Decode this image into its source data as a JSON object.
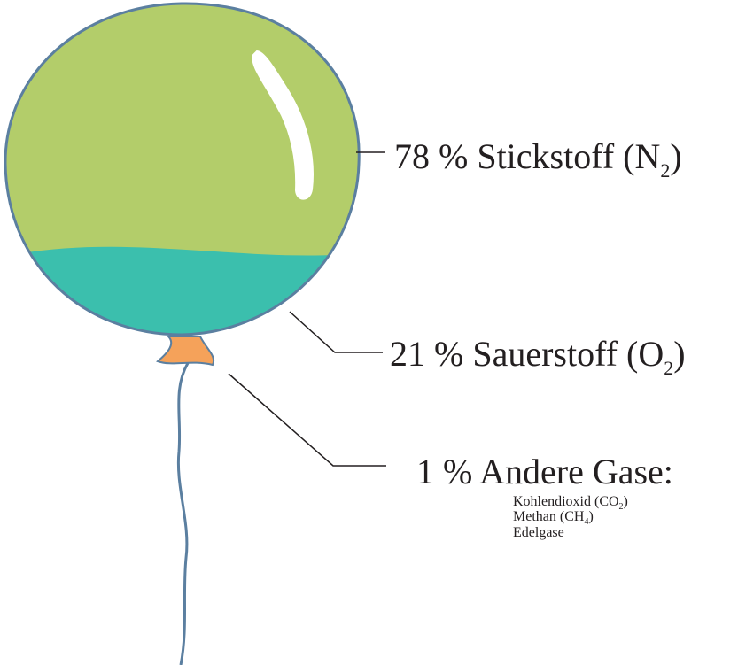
{
  "gases": [
    {
      "label": "78 % Stickstoff (N",
      "sub": "2",
      "end": ")"
    },
    {
      "label": "21 % Sauerstoff (O",
      "sub": "2",
      "end": ")"
    },
    {
      "label": "1 % Andere Gase:",
      "details": [
        {
          "text": "Kohlendioxid (CO",
          "sub": "2",
          "end": ")"
        },
        {
          "text": "Methan (CH",
          "sub": "4",
          "end": ")"
        },
        {
          "text": "Edelgase"
        }
      ]
    }
  ]
}
